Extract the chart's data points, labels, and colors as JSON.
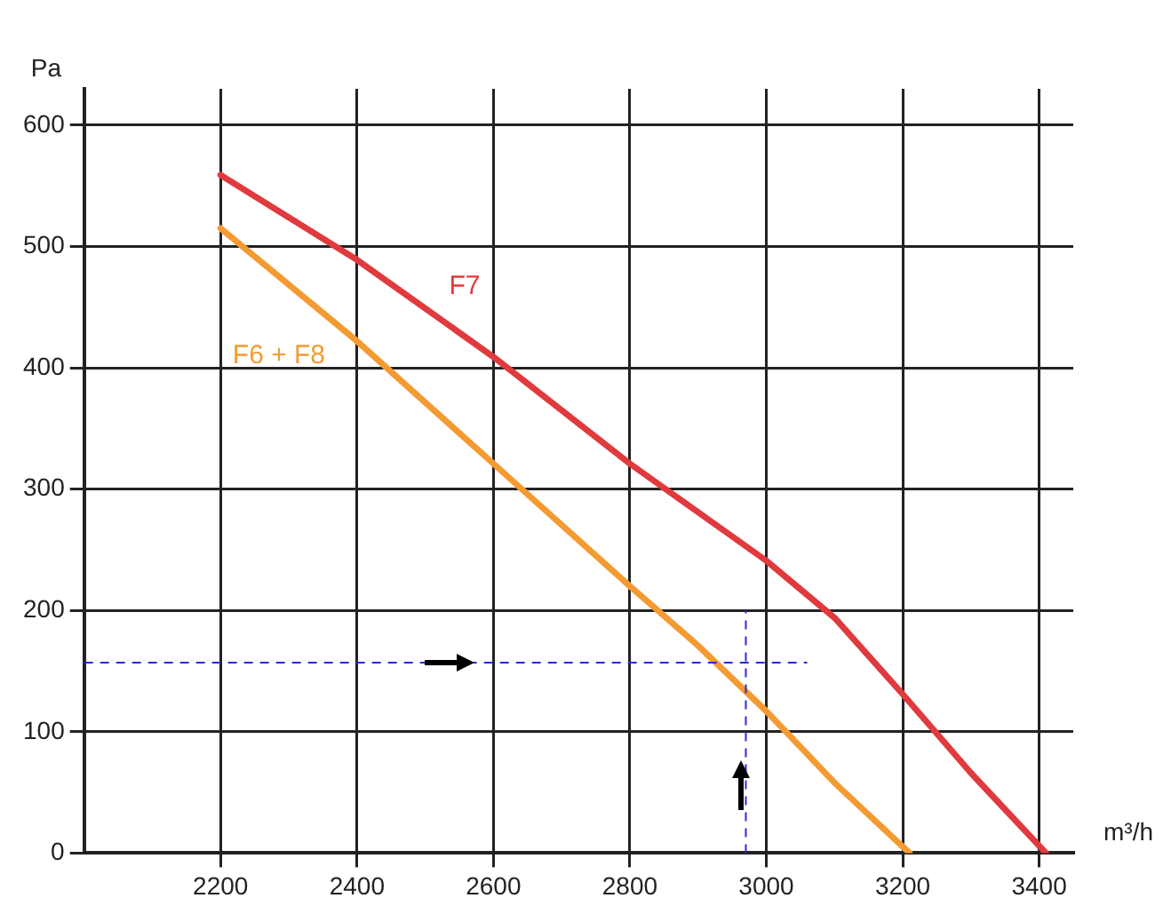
{
  "chart_data": {
    "type": "line",
    "xlabel": "m³/h",
    "ylabel": "Pa",
    "xlim": [
      2000,
      3450
    ],
    "xticks": [
      2200,
      2400,
      2600,
      2800,
      3000,
      3200,
      3400
    ],
    "ylim": [
      0,
      630
    ],
    "yticks": [
      0,
      100,
      200,
      300,
      400,
      500,
      600
    ],
    "series": [
      {
        "name": "F7",
        "color": "#e03a3e",
        "x": [
          2200,
          2400,
          2600,
          2800,
          3000,
          3100,
          3200,
          3300,
          3410
        ],
        "values": [
          559,
          489,
          409,
          321,
          241,
          194,
          131,
          66,
          0
        ]
      },
      {
        "name": "F6 + F8",
        "color": "#f39b32",
        "x": [
          2200,
          2400,
          2600,
          2800,
          2900,
          3000,
          3100,
          3210
        ],
        "values": [
          515,
          422,
          321,
          220,
          171,
          117,
          58,
          0
        ]
      }
    ],
    "ref_lines": [
      {
        "axis": "y",
        "value": 157,
        "color": "#2b2bd6",
        "line_style": "dashed"
      },
      {
        "axis": "x",
        "value": 2970,
        "color": "#2b2bd6",
        "line_style": "dashed"
      }
    ],
    "grid": true,
    "legend": false,
    "marker": "none",
    "line_style": "solid"
  }
}
